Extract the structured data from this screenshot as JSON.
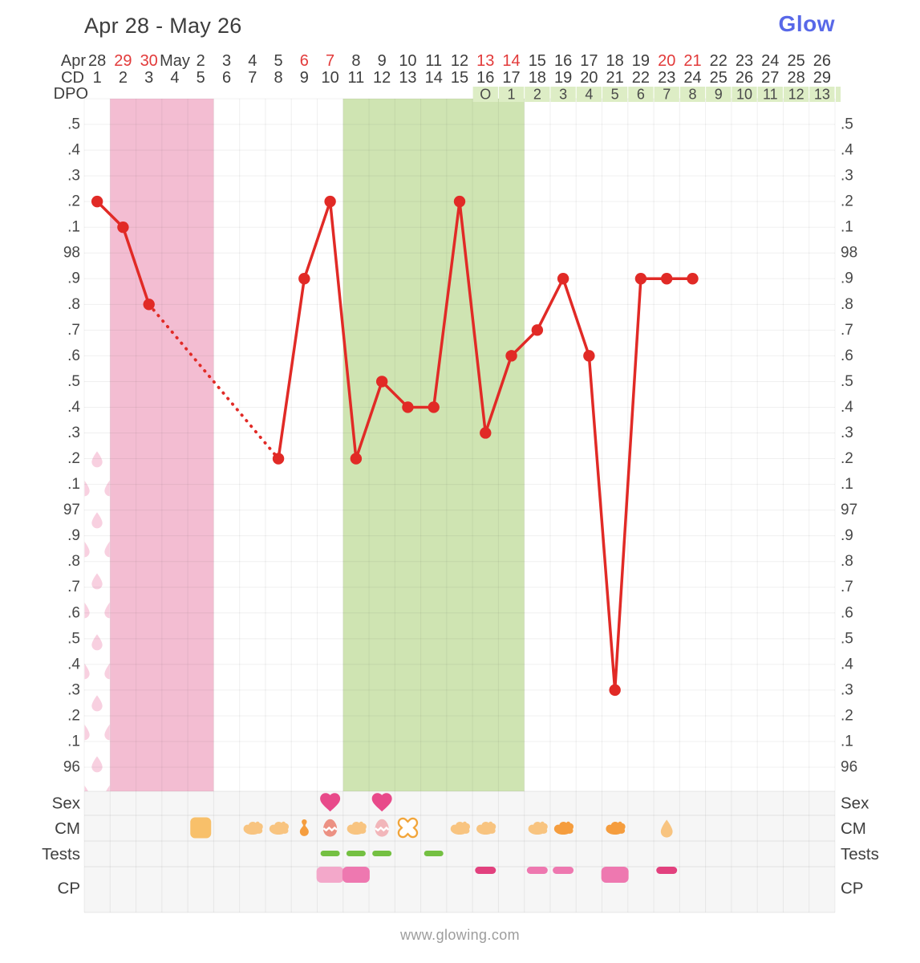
{
  "header": {
    "title": "Apr 28 - May 26",
    "logo": "Glow"
  },
  "footer": {
    "url": "www.glowing.com"
  },
  "colors": {
    "line_red": "#e12a26",
    "date_red": "#e23a3a",
    "text_dark": "#3e3e3e",
    "period_band": "#f3bdd2",
    "fertile_band": "#cfe4b2",
    "dpo_cell": "#ddedc5",
    "bottom_bg": "#f6f6f6",
    "droplet": "#f8d0e0",
    "heart": "#e84a8a",
    "test_dash": "#74c042",
    "cm_light": "#f8c480",
    "cm_dark": "#f59d3e",
    "cm_square": "#f8c06a",
    "egg_salmon": "#ec9183",
    "egg_pink": "#f2b6ba",
    "x_outline": "#f2a53a",
    "cp_light": "#f3a8ca",
    "cp_medium": "#ee78b0",
    "cp_dark": "#e2417e"
  },
  "axis": {
    "month_label": "Apr",
    "cd_label": "CD",
    "dpo_label": "DPO",
    "temp_labels": [
      ".5",
      ".4",
      ".3",
      ".2",
      ".1",
      "98",
      ".9",
      ".8",
      ".7",
      ".6",
      ".5",
      ".4",
      ".3",
      ".2",
      ".1",
      "97",
      ".9",
      ".8",
      ".7",
      ".6",
      ".5",
      ".4",
      ".3",
      ".2",
      ".1",
      "96"
    ]
  },
  "chart_data": {
    "type": "line",
    "title": "Apr 28 - May 26",
    "series_name": "Basal body temperature (°F)",
    "ylim": [
      95.9,
      98.6
    ],
    "grid": true,
    "x_days": [
      {
        "label": "28",
        "red": false
      },
      {
        "label": "29",
        "red": true
      },
      {
        "label": "30",
        "red": true
      },
      {
        "label": "May",
        "red": false
      },
      {
        "label": "2",
        "red": false
      },
      {
        "label": "3",
        "red": false
      },
      {
        "label": "4",
        "red": false
      },
      {
        "label": "5",
        "red": false
      },
      {
        "label": "6",
        "red": true
      },
      {
        "label": "7",
        "red": true
      },
      {
        "label": "8",
        "red": false
      },
      {
        "label": "9",
        "red": false
      },
      {
        "label": "10",
        "red": false
      },
      {
        "label": "11",
        "red": false
      },
      {
        "label": "12",
        "red": false
      },
      {
        "label": "13",
        "red": true
      },
      {
        "label": "14",
        "red": true
      },
      {
        "label": "15",
        "red": false
      },
      {
        "label": "16",
        "red": false
      },
      {
        "label": "17",
        "red": false
      },
      {
        "label": "18",
        "red": false
      },
      {
        "label": "19",
        "red": false
      },
      {
        "label": "20",
        "red": true
      },
      {
        "label": "21",
        "red": true
      },
      {
        "label": "22",
        "red": false
      },
      {
        "label": "23",
        "red": false
      },
      {
        "label": "24",
        "red": false
      },
      {
        "label": "25",
        "red": false
      },
      {
        "label": "26",
        "red": false
      }
    ],
    "cycle_days": [
      "1",
      "2",
      "3",
      "4",
      "5",
      "6",
      "7",
      "8",
      "9",
      "10",
      "11",
      "12",
      "13",
      "14",
      "15",
      "16",
      "17",
      "18",
      "19",
      "20",
      "21",
      "22",
      "23",
      "24",
      "25",
      "26",
      "27",
      "28",
      "29"
    ],
    "dpo_labels": [
      "O",
      "1",
      "2",
      "3",
      "4",
      "5",
      "6",
      "7",
      "8",
      "9",
      "10",
      "11",
      "12",
      "13"
    ],
    "dpo_start_cd": 16,
    "period_band_cds": [
      2,
      5
    ],
    "fertile_band_cds": [
      11,
      17
    ],
    "period_flow_column_cd": 1,
    "dotted_segment_cds": [
      3,
      8
    ],
    "temps": [
      {
        "cd": 1,
        "temp": 98.2
      },
      {
        "cd": 2,
        "temp": 98.1
      },
      {
        "cd": 3,
        "temp": 97.8
      },
      {
        "cd": 8,
        "temp": 97.2
      },
      {
        "cd": 9,
        "temp": 97.9
      },
      {
        "cd": 10,
        "temp": 98.2
      },
      {
        "cd": 11,
        "temp": 97.2
      },
      {
        "cd": 12,
        "temp": 97.5
      },
      {
        "cd": 13,
        "temp": 97.4
      },
      {
        "cd": 14,
        "temp": 97.4
      },
      {
        "cd": 15,
        "temp": 98.2
      },
      {
        "cd": 16,
        "temp": 97.3
      },
      {
        "cd": 17,
        "temp": 97.6
      },
      {
        "cd": 18,
        "temp": 97.7
      },
      {
        "cd": 19,
        "temp": 97.9
      },
      {
        "cd": 20,
        "temp": 97.6
      },
      {
        "cd": 21,
        "temp": 96.3
      },
      {
        "cd": 22,
        "temp": 97.9
      },
      {
        "cd": 23,
        "temp": 97.9
      },
      {
        "cd": 24,
        "temp": 97.9
      }
    ]
  },
  "rows": {
    "labels": [
      "Sex",
      "CM",
      "Tests",
      "CP"
    ],
    "sex": [
      {
        "cd": 10,
        "icon": "heart"
      },
      {
        "cd": 12,
        "icon": "heart"
      }
    ],
    "cm": [
      {
        "cd": 5,
        "icon": "square"
      },
      {
        "cd": 7,
        "icon": "blob",
        "shade": "light"
      },
      {
        "cd": 8,
        "icon": "blob",
        "shade": "light"
      },
      {
        "cd": 9,
        "icon": "pin"
      },
      {
        "cd": 10,
        "icon": "egg",
        "shade": "salmon"
      },
      {
        "cd": 11,
        "icon": "blob",
        "shade": "light"
      },
      {
        "cd": 12,
        "icon": "egg",
        "shade": "pink"
      },
      {
        "cd": 13,
        "icon": "x"
      },
      {
        "cd": 15,
        "icon": "blob",
        "shade": "light"
      },
      {
        "cd": 16,
        "icon": "blob",
        "shade": "light"
      },
      {
        "cd": 18,
        "icon": "blob",
        "shade": "light"
      },
      {
        "cd": 19,
        "icon": "blob",
        "shade": "dark"
      },
      {
        "cd": 21,
        "icon": "blob",
        "shade": "dark"
      },
      {
        "cd": 23,
        "icon": "drop"
      }
    ],
    "tests": [
      {
        "cd": 10,
        "icon": "dash"
      },
      {
        "cd": 11,
        "icon": "dash"
      },
      {
        "cd": 12,
        "icon": "dash"
      },
      {
        "cd": 14,
        "icon": "dash"
      }
    ],
    "cp": [
      {
        "cd": 10,
        "icon": "rect",
        "shade": "light"
      },
      {
        "cd": 11,
        "icon": "rect",
        "shade": "medium"
      },
      {
        "cd": 16,
        "icon": "dash",
        "shade": "dark"
      },
      {
        "cd": 18,
        "icon": "dash",
        "shade": "medium"
      },
      {
        "cd": 19,
        "icon": "dash",
        "shade": "medium"
      },
      {
        "cd": 21,
        "icon": "rect",
        "shade": "medium"
      },
      {
        "cd": 23,
        "icon": "dash",
        "shade": "dark"
      }
    ]
  }
}
